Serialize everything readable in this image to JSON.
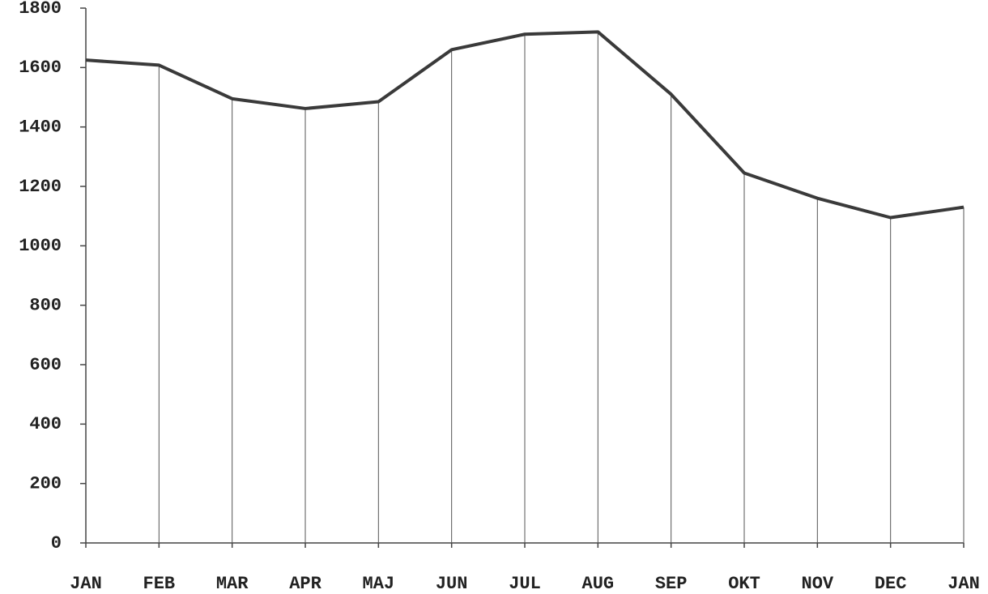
{
  "chart_data": {
    "type": "line",
    "categories": [
      "JAN",
      "FEB",
      "MAR",
      "APR",
      "MAJ",
      "JUN",
      "JUL",
      "AUG",
      "SEP",
      "OKT",
      "NOV",
      "DEC",
      "JAN"
    ],
    "values": [
      1625,
      1608,
      1495,
      1462,
      1485,
      1660,
      1712,
      1720,
      1510,
      1245,
      1160,
      1095,
      1130
    ],
    "color": "#3a3a3a",
    "ylim": [
      0,
      1800
    ],
    "yticks": [
      0,
      200,
      400,
      600,
      800,
      1000,
      1200,
      1400,
      1600,
      1800
    ],
    "drop_lines": true
  }
}
